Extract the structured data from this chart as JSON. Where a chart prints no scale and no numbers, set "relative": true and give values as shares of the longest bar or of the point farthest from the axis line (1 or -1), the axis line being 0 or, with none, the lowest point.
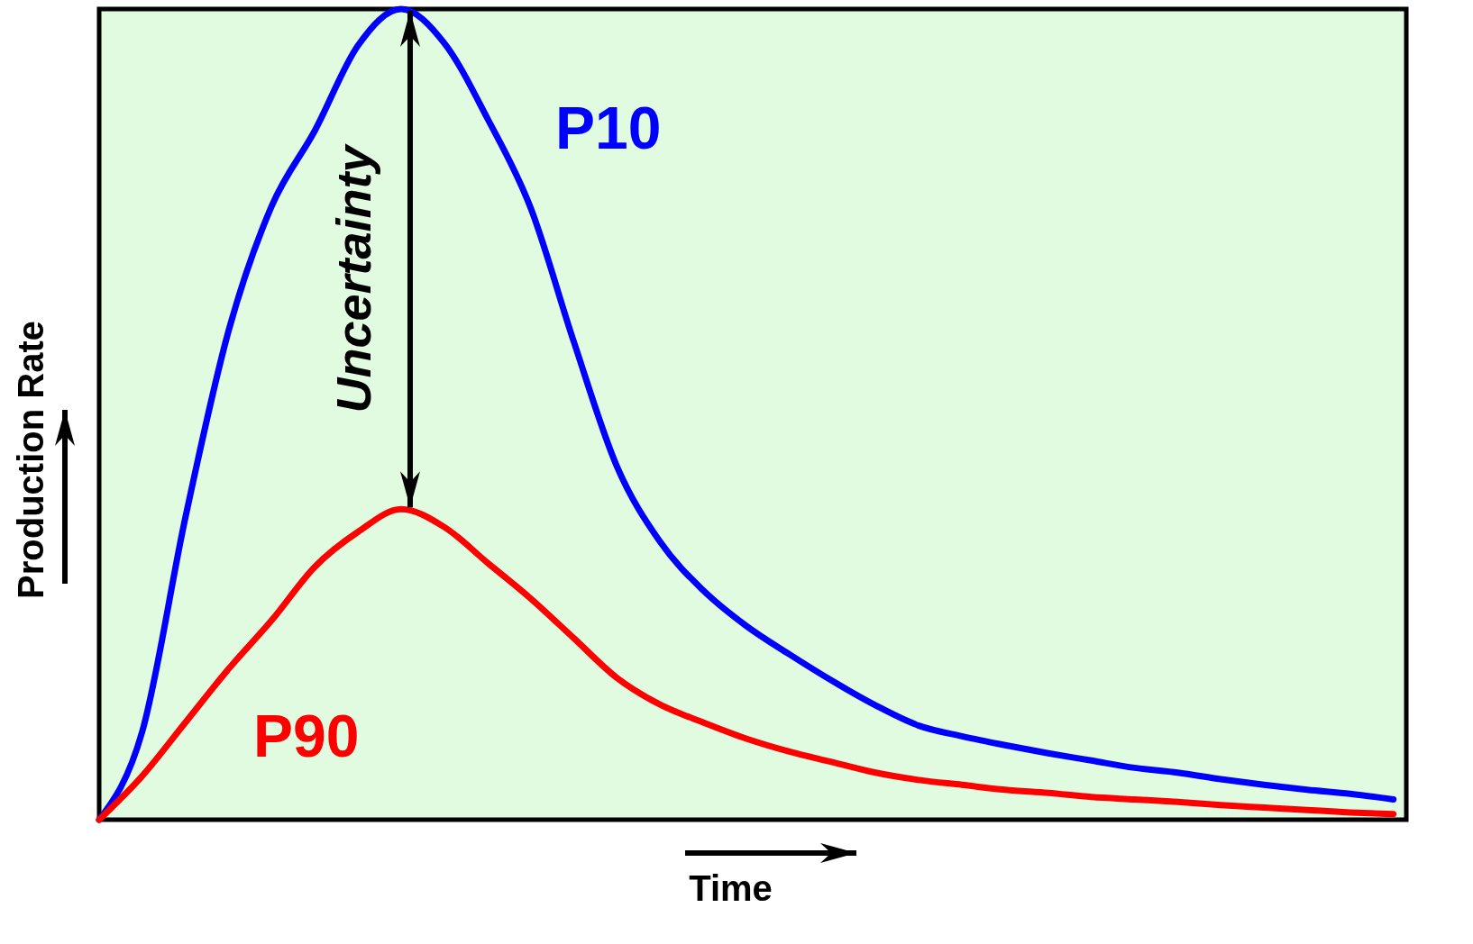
{
  "chart_data": {
    "type": "line",
    "relative": true,
    "xlabel": "Time",
    "ylabel": "Production Rate",
    "annotations": [
      "Uncertainty"
    ],
    "grid": false,
    "marker": "none",
    "line_style": "solid",
    "categories": [
      null,
      null,
      null,
      null,
      null,
      null,
      null,
      null,
      null,
      null,
      null,
      null,
      null,
      null,
      null,
      null,
      null,
      null,
      null,
      null,
      null,
      null,
      null,
      null,
      null,
      null,
      null,
      null,
      null,
      null,
      null
    ],
    "series": [
      {
        "name": "P10",
        "color": "#0000ff",
        "values": [
          0,
          0.109,
          0.373,
          0.603,
          0.757,
          0.85,
          0.955,
          1,
          0.958,
          0.865,
          0.755,
          0.59,
          0.436,
          0.343,
          0.283,
          0.239,
          0.204,
          0.171,
          0.141,
          0.116,
          0.103,
          0.092,
          0.082,
          0.073,
          0.064,
          0.058,
          0.05,
          0.043,
          0.037,
          0.032,
          0.025
        ]
      },
      {
        "name": "P90",
        "color": "#ff0000",
        "values": [
          0,
          0.054,
          0.12,
          0.186,
          0.246,
          0.312,
          0.355,
          0.383,
          0.361,
          0.317,
          0.273,
          0.224,
          0.175,
          0.142,
          0.12,
          0.1,
          0.084,
          0.071,
          0.058,
          0.049,
          0.043,
          0.037,
          0.033,
          0.028,
          0.025,
          0.022,
          0.018,
          0.015,
          0.012,
          0.009,
          0.007
        ]
      }
    ]
  }
}
